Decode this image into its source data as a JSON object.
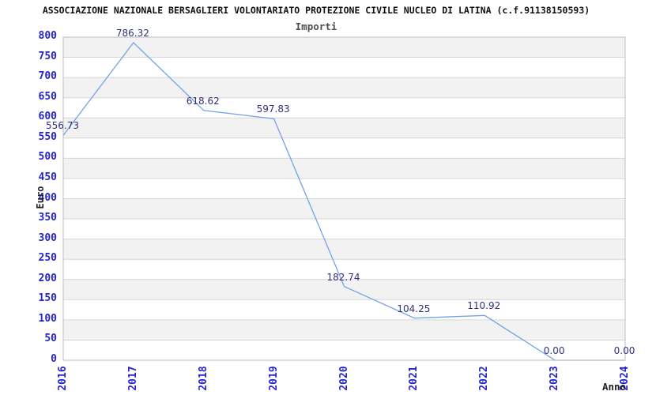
{
  "chart_data": {
    "type": "line",
    "title": "ASSOCIAZIONE NAZIONALE BERSAGLIERI VOLONTARIATO PROTEZIONE CIVILE NUCLEO DI LATINA (c.f.91138150593)",
    "subtitle": "Importi",
    "xlabel": "Anno",
    "ylabel": "Euro",
    "categories": [
      "2016",
      "2017",
      "2018",
      "2019",
      "2020",
      "2021",
      "2022",
      "2023",
      "2024"
    ],
    "values": [
      556.73,
      786.32,
      618.62,
      597.83,
      182.74,
      104.25,
      110.92,
      0,
      0
    ],
    "value_labels": [
      "556.73",
      "786.32",
      "618.62",
      "597.83",
      "182.74",
      "104.25",
      "110.92",
      "0.00",
      "0.00"
    ],
    "ylim": [
      0,
      800
    ],
    "y_tick_step": 50,
    "y_ticks": [
      "0",
      "50",
      "100",
      "150",
      "200",
      "250",
      "300",
      "350",
      "400",
      "450",
      "500",
      "550",
      "600",
      "650",
      "700",
      "750",
      "800"
    ],
    "grid": true,
    "legend_position": "none",
    "colors": {
      "line": "#74a2e6",
      "tick_label": "#2323cf",
      "value_label": "#30307e",
      "title": "#111111",
      "subtitle": "#4d4d4d",
      "axis_title": "#222222",
      "band": "#f2f2f2",
      "gridline": "#d6d6d6",
      "plot_border": "#bdbdbd",
      "plot_background": "#ffffff"
    }
  }
}
